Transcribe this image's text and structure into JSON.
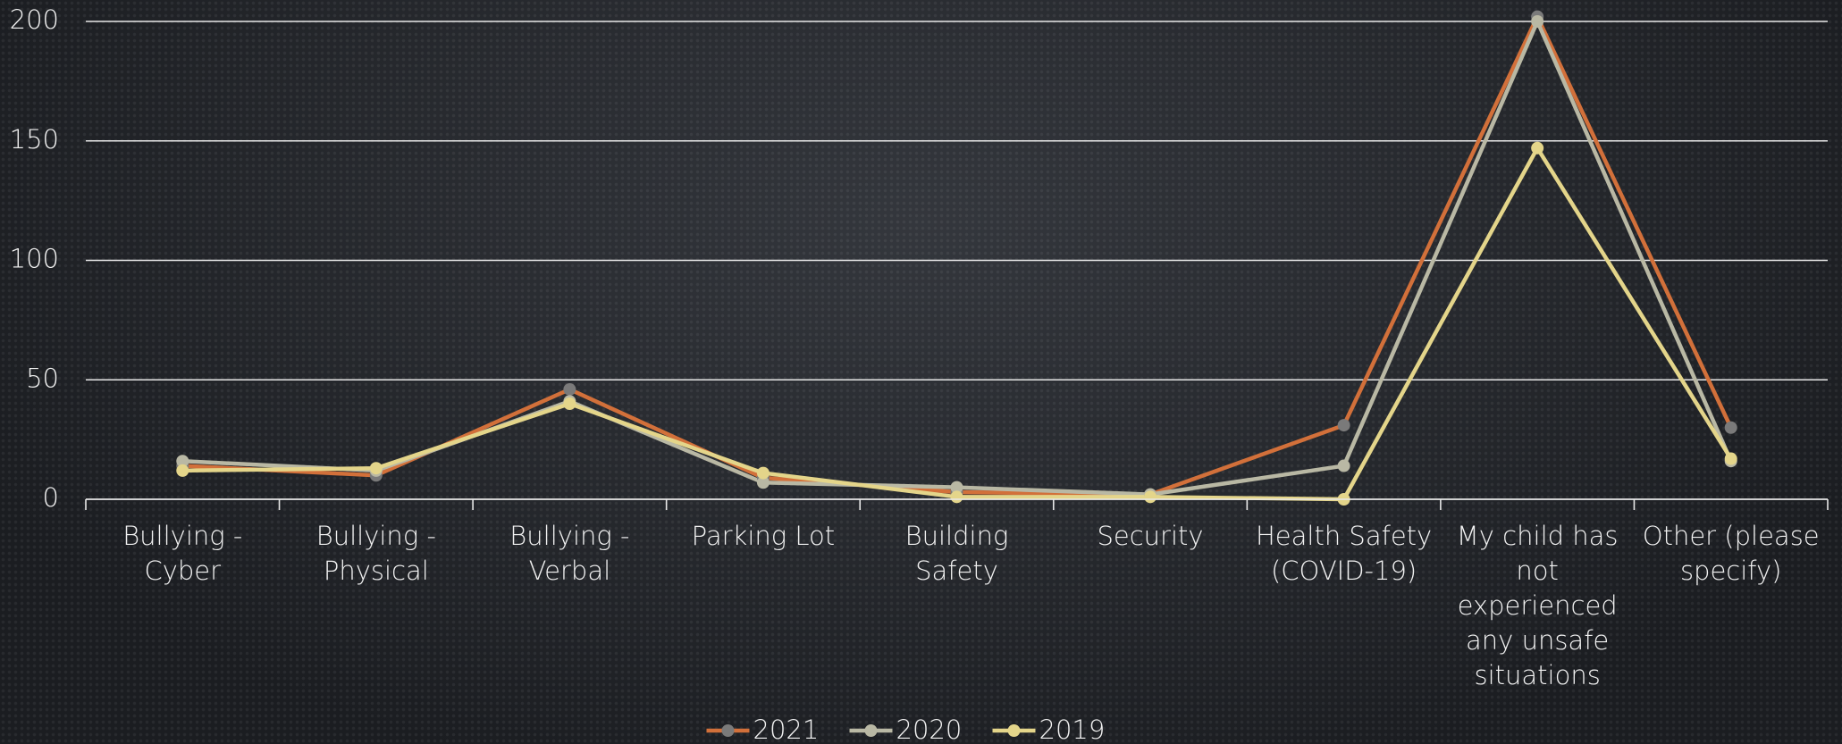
{
  "chart_data": {
    "type": "line",
    "categories": [
      "Bullying - Cyber",
      "Bullying - Physical",
      "Bullying - Verbal",
      "Parking Lot",
      "Building Safety",
      "Security",
      "Health Safety (COVID-19)",
      "My child has not experienced any unsafe situations",
      "Other (please specify)"
    ],
    "series": [
      {
        "name": "2021",
        "color": "#d2703a",
        "marker_color": "#7a7a7a",
        "values": [
          14,
          10,
          46,
          9,
          3,
          2,
          31,
          202,
          30
        ]
      },
      {
        "name": "2020",
        "color": "#b9b8a4",
        "marker_color": "#b9b8a4",
        "values": [
          16,
          12,
          41,
          7,
          5,
          2,
          14,
          200,
          16
        ]
      },
      {
        "name": "2019",
        "color": "#e4d58a",
        "marker_color": "#e4d58a",
        "values": [
          12,
          13,
          40,
          11,
          1,
          1,
          0,
          147,
          17
        ]
      }
    ],
    "ylim": [
      0,
      200
    ],
    "yticks": [
      0,
      50,
      100,
      150,
      200
    ],
    "grid": true,
    "legend": "bottom"
  }
}
